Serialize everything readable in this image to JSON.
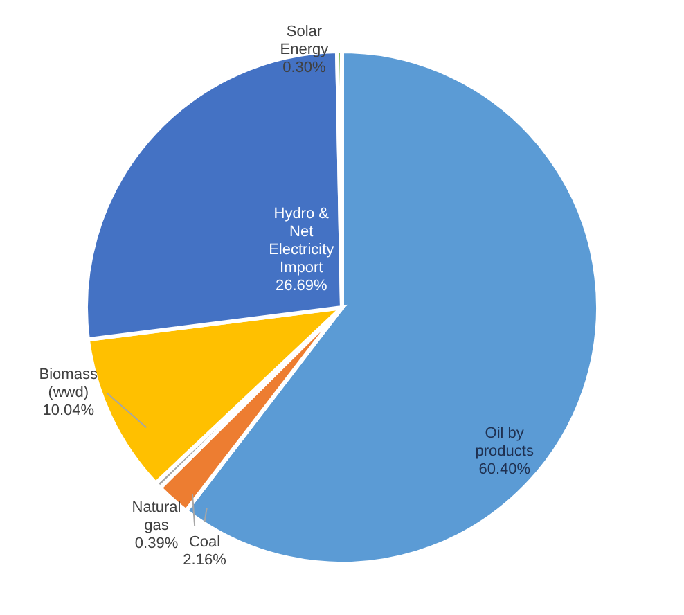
{
  "chart_data": {
    "type": "pie",
    "categories": [
      "Oil by products",
      "Coal",
      "Natural gas",
      "Biomass (wwd)",
      "Hydro & Net Electricity Import",
      "Solar Energy"
    ],
    "values": [
      60.4,
      2.16,
      0.39,
      10.04,
      26.69,
      0.3
    ],
    "colors": [
      "#5b9bd5",
      "#ed7d31",
      "#a5a5a5",
      "#ffc000",
      "#4472c4",
      "#70ad47"
    ],
    "value_labels": [
      "60.40%",
      "2.16%",
      "0.39%",
      "10.04%",
      "26.69%",
      "0.30%"
    ]
  }
}
